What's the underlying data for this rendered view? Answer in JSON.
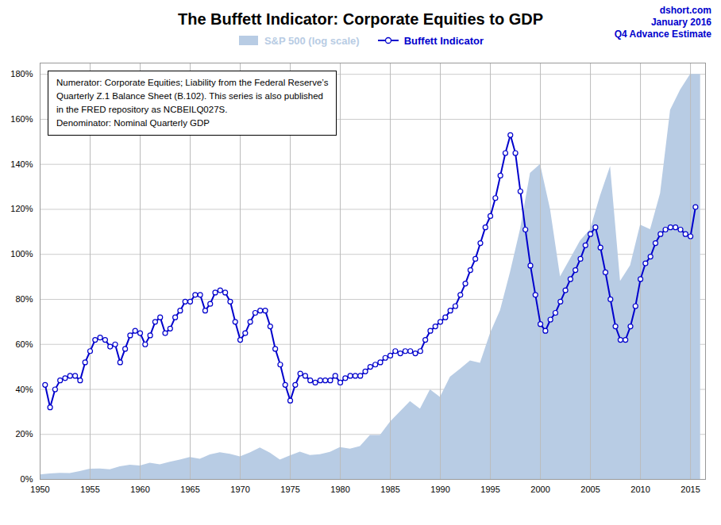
{
  "chart_data": {
    "type": "line",
    "title": "The Buffett Indicator: Corporate Equities to GDP",
    "annotations": [
      [
        "dshort.com",
        "January 2016",
        "Q4 Advance Estimate"
      ],
      [
        "Numerator: Corporate Equities; Liability from the Federal Reserve’s",
        "Quarterly Z.1 Balance Sheet (B.102). This series is also published",
        "in the FRED repository as NCBEILQ027S.",
        "Denominator: Nominal Quarterly GDP"
      ]
    ],
    "legend": "top",
    "grid": true,
    "xlim": [
      1950,
      2016.5
    ],
    "xticks": [
      1950,
      1955,
      1960,
      1965,
      1970,
      1975,
      1980,
      1985,
      1990,
      1995,
      2000,
      2005,
      2010,
      2015
    ],
    "ylim": [
      0.0,
      1.85
    ],
    "yticks": [
      {
        "value": 0.0,
        "label": "0%"
      },
      {
        "value": 0.2,
        "label": "20%"
      },
      {
        "value": 0.4,
        "label": "40%"
      },
      {
        "value": 0.6,
        "label": "60%"
      },
      {
        "value": 0.8,
        "label": "80%"
      },
      {
        "value": 1.0,
        "label": "100%"
      },
      {
        "value": 1.2,
        "label": "120%"
      },
      {
        "value": 1.4,
        "label": "140%"
      },
      {
        "value": 1.6,
        "label": "160%"
      },
      {
        "value": 1.8,
        "label": "180%"
      }
    ],
    "series": [
      {
        "name": "S&P 500 (log scale)",
        "type": "area",
        "color": "#b8cce4",
        "x": [
          1950,
          1951,
          1952,
          1953,
          1954,
          1955,
          1956,
          1957,
          1958,
          1959,
          1960,
          1961,
          1962,
          1963,
          1964,
          1965,
          1966,
          1967,
          1968,
          1969,
          1970,
          1971,
          1972,
          1973,
          1974,
          1975,
          1976,
          1977,
          1978,
          1979,
          1980,
          1981,
          1982,
          1983,
          1984,
          1985,
          1986,
          1987,
          1988,
          1989,
          1990,
          1991,
          1992,
          1993,
          1994,
          1995,
          1996,
          1997,
          1998,
          1999,
          2000,
          2001,
          2002,
          2003,
          2004,
          2005,
          2006,
          2007,
          2008,
          2009,
          2010,
          2011,
          2012,
          2013,
          2014,
          2015,
          2016
        ],
        "values": [
          0.02,
          0.025,
          0.027,
          0.026,
          0.035,
          0.046,
          0.047,
          0.043,
          0.056,
          0.063,
          0.06,
          0.072,
          0.065,
          0.077,
          0.086,
          0.098,
          0.09,
          0.109,
          0.119,
          0.112,
          0.1,
          0.118,
          0.14,
          0.117,
          0.086,
          0.105,
          0.122,
          0.107,
          0.11,
          0.121,
          0.142,
          0.135,
          0.146,
          0.196,
          0.196,
          0.255,
          0.3,
          0.346,
          0.313,
          0.398,
          0.365,
          0.455,
          0.49,
          0.527,
          0.516,
          0.648,
          0.75,
          0.92,
          1.11,
          1.36,
          1.4,
          1.2,
          0.9,
          0.98,
          1.06,
          1.11,
          1.26,
          1.39,
          0.88,
          0.95,
          1.13,
          1.11,
          1.27,
          1.64,
          1.73,
          1.8,
          1.8
        ]
      },
      {
        "name": "Buffett Indicator",
        "type": "line",
        "color": "#0000cc",
        "marker": "circle",
        "x": [
          1950.5,
          1951.0,
          1951.5,
          1952.0,
          1952.5,
          1953.0,
          1953.5,
          1954.0,
          1954.5,
          1955.0,
          1955.5,
          1956.0,
          1956.5,
          1957.0,
          1957.5,
          1958.0,
          1958.5,
          1959.0,
          1959.5,
          1960.0,
          1960.5,
          1961.0,
          1961.5,
          1962.0,
          1962.5,
          1963.0,
          1963.5,
          1964.0,
          1964.5,
          1965.0,
          1965.5,
          1966.0,
          1966.5,
          1967.0,
          1967.5,
          1968.0,
          1968.5,
          1969.0,
          1969.5,
          1970.0,
          1970.5,
          1971.0,
          1971.5,
          1972.0,
          1972.5,
          1973.0,
          1973.5,
          1974.0,
          1974.5,
          1975.0,
          1975.5,
          1976.0,
          1976.5,
          1977.0,
          1977.5,
          1978.0,
          1978.5,
          1979.0,
          1979.5,
          1980.0,
          1980.5,
          1981.0,
          1981.5,
          1982.0,
          1982.5,
          1983.0,
          1983.5,
          1984.0,
          1984.5,
          1985.0,
          1985.5,
          1986.0,
          1986.5,
          1987.0,
          1987.5,
          1988.0,
          1988.5,
          1989.0,
          1989.5,
          1990.0,
          1990.5,
          1991.0,
          1991.5,
          1992.0,
          1992.5,
          1993.0,
          1993.5,
          1994.0,
          1994.5,
          1995.0,
          1995.5,
          1996.0,
          1996.5,
          1997.0,
          1997.5,
          1998.0,
          1998.5,
          1999.0,
          1999.5,
          2000.0,
          2000.5,
          2001.0,
          2001.5,
          2002.0,
          2002.5,
          2003.0,
          2003.5,
          2004.0,
          2004.5,
          2005.0,
          2005.5,
          2006.0,
          2006.5,
          2007.0,
          2007.5,
          2008.0,
          2008.5,
          2009.0,
          2009.5,
          2010.0,
          2010.5,
          2011.0,
          2011.5,
          2012.0,
          2012.5,
          2013.0,
          2013.5,
          2014.0,
          2014.5,
          2015.0,
          2015.5
        ],
        "values": [
          0.42,
          0.32,
          0.4,
          0.44,
          0.45,
          0.46,
          0.46,
          0.44,
          0.52,
          0.57,
          0.62,
          0.63,
          0.62,
          0.59,
          0.6,
          0.52,
          0.58,
          0.64,
          0.66,
          0.65,
          0.6,
          0.64,
          0.7,
          0.72,
          0.65,
          0.67,
          0.72,
          0.75,
          0.79,
          0.79,
          0.82,
          0.82,
          0.75,
          0.78,
          0.83,
          0.84,
          0.83,
          0.79,
          0.7,
          0.62,
          0.65,
          0.7,
          0.74,
          0.75,
          0.75,
          0.68,
          0.58,
          0.51,
          0.42,
          0.35,
          0.42,
          0.47,
          0.46,
          0.44,
          0.43,
          0.44,
          0.44,
          0.44,
          0.46,
          0.43,
          0.45,
          0.46,
          0.46,
          0.46,
          0.48,
          0.5,
          0.51,
          0.52,
          0.54,
          0.55,
          0.57,
          0.56,
          0.57,
          0.57,
          0.56,
          0.57,
          0.62,
          0.66,
          0.68,
          0.7,
          0.72,
          0.75,
          0.77,
          0.82,
          0.87,
          0.93,
          0.98,
          1.05,
          1.12,
          1.17,
          1.25,
          1.35,
          1.45,
          1.53,
          1.45,
          1.28,
          1.11,
          0.95,
          0.82,
          0.69,
          0.66,
          0.71,
          0.74,
          0.79,
          0.84,
          0.89,
          0.93,
          0.98,
          1.04,
          1.09,
          1.12,
          1.03,
          0.92,
          0.8,
          0.68,
          0.62,
          0.62,
          0.68,
          0.77,
          0.89,
          0.96,
          0.99,
          1.05,
          1.09,
          1.11,
          1.12,
          1.12,
          1.11,
          1.09,
          1.08,
          1.21
        ]
      }
    ]
  }
}
